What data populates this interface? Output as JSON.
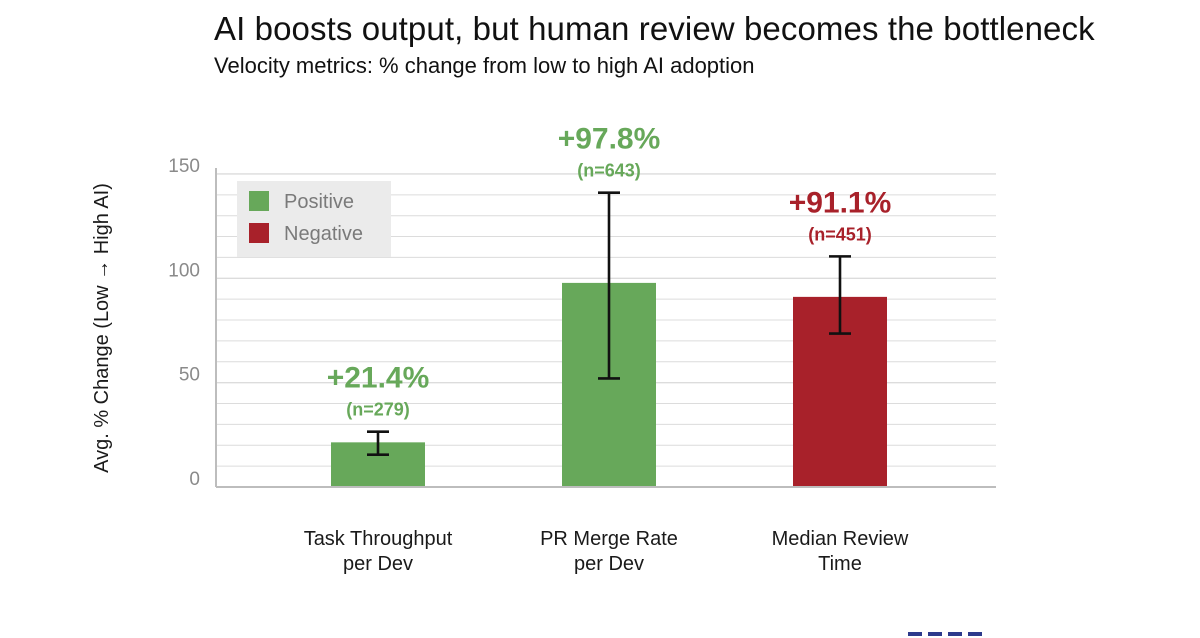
{
  "title": "AI boosts output, but human review becomes the bottleneck",
  "subtitle": "Velocity metrics: % change from low to high AI adoption",
  "colors": {
    "positive": "#67a85a",
    "negative": "#a8212a",
    "grid": "#dcdcdc",
    "axis": "#bdbdbd"
  },
  "chart_data": {
    "type": "bar",
    "ylabel": "Avg. % Change (Low → High AI)",
    "xlabel": "",
    "ylim": [
      0,
      150
    ],
    "yticks": [
      0,
      50,
      100,
      150
    ],
    "grid": true,
    "legend": {
      "placement": "top-left",
      "entries": [
        {
          "label": "Positive",
          "color": "#67a85a"
        },
        {
          "label": "Negative",
          "color": "#a8212a"
        }
      ]
    },
    "categories": [
      [
        "Task Throughput",
        "per Dev"
      ],
      [
        "PR Merge Rate",
        "per Dev"
      ],
      [
        "Median Review",
        "Time"
      ]
    ],
    "values": [
      21.4,
      97.8,
      91.1
    ],
    "error_low": [
      15.5,
      52,
      73.5
    ],
    "error_high": [
      26.5,
      141,
      110.5
    ],
    "sentiment": [
      "Positive",
      "Positive",
      "Negative"
    ],
    "value_labels": [
      "+21.4%",
      "+97.8%",
      "+91.1%"
    ],
    "n_labels": [
      "(n=279)",
      "(n=643)",
      "(n=451)"
    ]
  }
}
